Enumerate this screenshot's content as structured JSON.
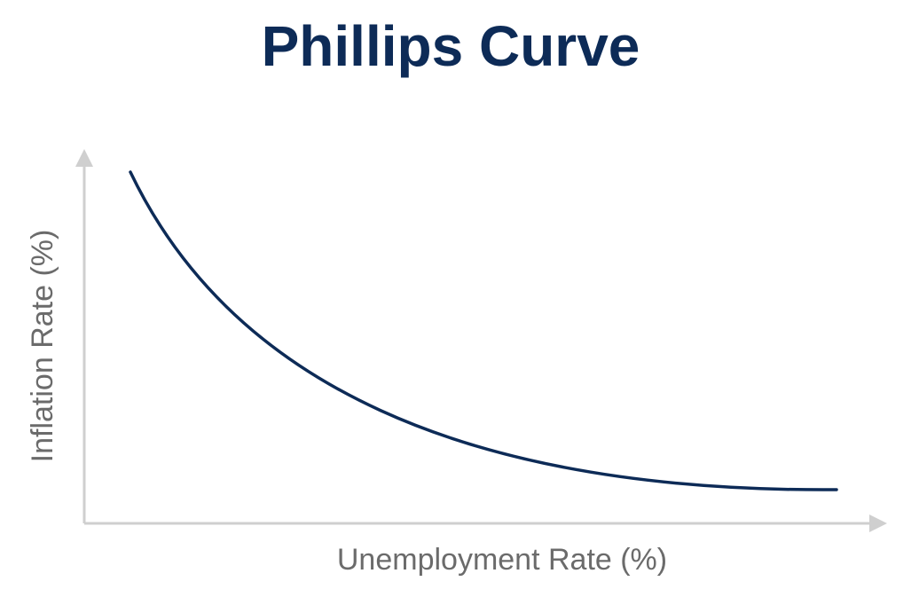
{
  "title": "Phillips Curve",
  "x_axis": {
    "label": "Unemployment Rate (%)"
  },
  "y_axis": {
    "label": "Inflation Rate (%)"
  }
}
